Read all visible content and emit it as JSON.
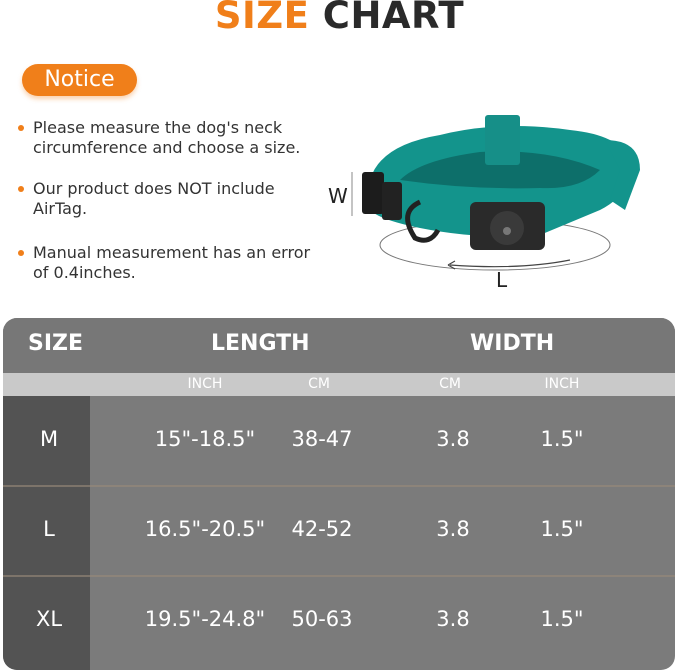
{
  "title": {
    "part1": "SIZE",
    "part2": "CHART"
  },
  "notice": {
    "label": "Notice",
    "bullets": [
      {
        "line1": "Please measure the dog's neck",
        "line2": "circumference and choose a size."
      },
      {
        "line1": "Our product does NOT include",
        "line2": "AirTag."
      },
      {
        "line1": "Manual measurement has an error",
        "line2": "of 0.4inches."
      }
    ]
  },
  "diagram": {
    "width_label": "W",
    "length_label": "L",
    "collar_color": "#13948c"
  },
  "colors": {
    "accent": "#f07f1a",
    "header": "#777777",
    "subheader": "#c9c9c9",
    "size_column": "#535353",
    "body": "#7b7b7b"
  },
  "table": {
    "headers": {
      "size": "SIZE",
      "length": "LENGTH",
      "width": "WIDTH"
    },
    "subheaders": [
      "INCH",
      "CM",
      "CM",
      "INCH"
    ],
    "rows": [
      {
        "size": "M",
        "length_inch": "15\"-18.5\"",
        "length_cm": "38-47",
        "width_cm": "3.8",
        "width_inch": "1.5\""
      },
      {
        "size": "L",
        "length_inch": "16.5\"-20.5\"",
        "length_cm": "42-52",
        "width_cm": "3.8",
        "width_inch": "1.5\""
      },
      {
        "size": "XL",
        "length_inch": "19.5\"-24.8\"",
        "length_cm": "50-63",
        "width_cm": "3.8",
        "width_inch": "1.5\""
      }
    ]
  }
}
